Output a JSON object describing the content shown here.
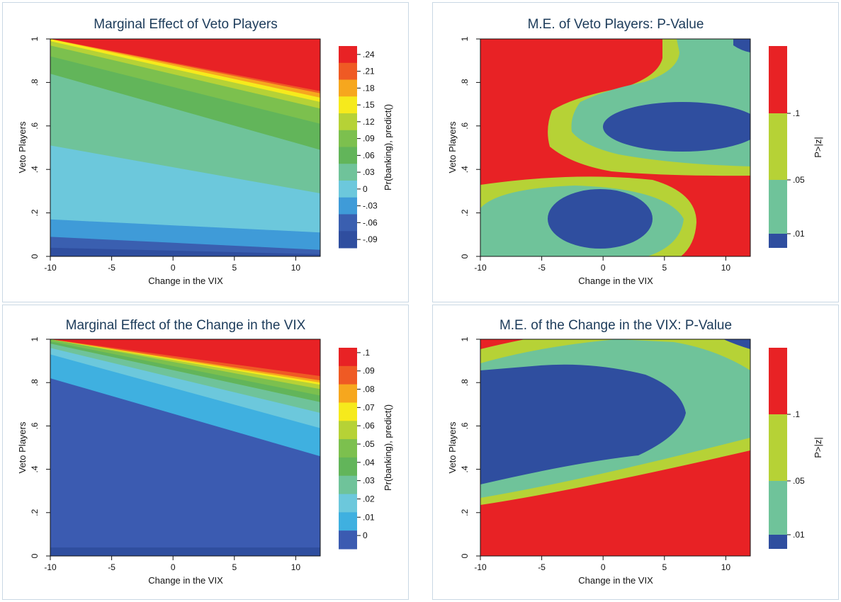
{
  "colors": {
    "c1": "#2f4e9f",
    "c2": "#3a5fb0",
    "c3": "#3f9bd8",
    "c4": "#6cc8dc",
    "c5": "#6fc39a",
    "c6": "#62b55a",
    "c7": "#7cc04e",
    "c8": "#b6d236",
    "c9": "#f6ea1c",
    "c10": "#f6a71e",
    "c11": "#ef5a24",
    "c12": "#e82225",
    "vix_blue": "#3b5bb1",
    "pv_blue": "#2f4e9f",
    "pv_teal": "#6fc39a",
    "pv_lime": "#b6d236",
    "pv_red": "#e82225",
    "panel_border": "#c9d8e4",
    "title": "#1c3b5a"
  },
  "chart_data": [
    {
      "type": "heatmap",
      "title": "Marginal Effect of Veto Players",
      "xlabel": "Change in the VIX",
      "ylabel": "Veto Players",
      "colorbar_label": "Pr(banking), predict()",
      "xlim": [
        -10,
        12
      ],
      "ylim": [
        0,
        1
      ],
      "x_ticks": [
        "-10",
        "-5",
        "0",
        "5",
        "10"
      ],
      "y_ticks": [
        "0",
        ".2",
        ".4",
        ".6",
        ".8",
        "1"
      ],
      "legend_labels": [
        ".24",
        ".21",
        ".18",
        ".15",
        ".12",
        ".09",
        ".06",
        ".03",
        "0",
        "-.03",
        "-.06",
        "-.09"
      ],
      "legend_colors": [
        "#e82225",
        "#ef5a24",
        "#f6a71e",
        "#f6ea1c",
        "#b6d236",
        "#7cc04e",
        "#62b55a",
        "#6fc39a",
        "#6cc8dc",
        "#3f9bd8",
        "#3a5fb0",
        "#2f4e9f"
      ],
      "boundaries": [
        {
          "color": "#2f4e9f",
          "y_at_x_min": 0.0,
          "y_at_x_max": 0.0
        },
        {
          "color": "#3a5fb0",
          "y_at_x_min": 0.04,
          "y_at_x_max": 0.01
        },
        {
          "color": "#3f9bd8",
          "y_at_x_min": 0.09,
          "y_at_x_max": 0.03
        },
        {
          "color": "#6cc8dc",
          "y_at_x_min": 0.17,
          "y_at_x_max": 0.11
        },
        {
          "color": "#6fc39a",
          "y_at_x_min": 0.51,
          "y_at_x_max": 0.29
        },
        {
          "color": "#62b55a",
          "y_at_x_min": 0.84,
          "y_at_x_max": 0.49
        },
        {
          "color": "#7cc04e",
          "y_at_x_min": 0.92,
          "y_at_x_max": 0.61
        },
        {
          "color": "#b6d236",
          "y_at_x_min": 0.97,
          "y_at_x_max": 0.68
        },
        {
          "color": "#f6ea1c",
          "y_at_x_min": 0.99,
          "y_at_x_max": 0.71
        },
        {
          "color": "#f6a71e",
          "y_at_x_min": 1.0,
          "y_at_x_max": 0.73
        },
        {
          "color": "#ef5a24",
          "y_at_x_min": 1.0,
          "y_at_x_max": 0.75
        },
        {
          "color": "#e82225",
          "y_at_x_min": 1.0,
          "y_at_x_max": 0.76
        }
      ]
    },
    {
      "type": "heatmap",
      "title": "M.E. of Veto Players: P-Value",
      "xlabel": "Change in the VIX",
      "ylabel": "Veto Players",
      "colorbar_label": "P>|z|",
      "xlim": [
        -10,
        12
      ],
      "ylim": [
        0,
        1
      ],
      "x_ticks": [
        "-10",
        "-5",
        "0",
        "5",
        "10"
      ],
      "y_ticks": [
        "0",
        ".2",
        ".4",
        ".6",
        ".8",
        "1"
      ],
      "legend_labels": [
        ".1",
        ".05",
        ".01"
      ],
      "legend_colors": [
        "#e82225",
        "#b6d236",
        "#6fc39a",
        "#2f4e9f"
      ]
    },
    {
      "type": "heatmap",
      "title": "Marginal Effect of the Change in the VIX",
      "xlabel": "Change in the VIX",
      "ylabel": "Veto Players",
      "colorbar_label": "Pr(banking), predict()",
      "xlim": [
        -10,
        12
      ],
      "ylim": [
        0,
        1
      ],
      "x_ticks": [
        "-10",
        "-5",
        "0",
        "5",
        "10"
      ],
      "y_ticks": [
        "0",
        ".2",
        ".4",
        ".6",
        ".8",
        "1"
      ],
      "legend_labels": [
        ".1",
        ".09",
        ".08",
        ".07",
        ".06",
        ".05",
        ".04",
        ".03",
        ".02",
        ".01",
        "0"
      ],
      "legend_colors": [
        "#e82225",
        "#ef5a24",
        "#f6a71e",
        "#f6ea1c",
        "#b6d236",
        "#7cc04e",
        "#62b55a",
        "#6fc39a",
        "#6cc8dc",
        "#3fb0e0",
        "#3b5bb1"
      ],
      "boundaries": [
        {
          "color": "#3b5bb1",
          "y_at_x_min": 0.0,
          "y_at_x_max": 0.0
        },
        {
          "color": "#3fb0e0",
          "y_at_x_min": 0.82,
          "y_at_x_max": 0.46
        },
        {
          "color": "#6cc8dc",
          "y_at_x_min": 0.93,
          "y_at_x_max": 0.59
        },
        {
          "color": "#6fc39a",
          "y_at_x_min": 0.96,
          "y_at_x_max": 0.66
        },
        {
          "color": "#62b55a",
          "y_at_x_min": 0.98,
          "y_at_x_max": 0.71
        },
        {
          "color": "#7cc04e",
          "y_at_x_min": 0.99,
          "y_at_x_max": 0.74
        },
        {
          "color": "#b6d236",
          "y_at_x_min": 1.0,
          "y_at_x_max": 0.77
        },
        {
          "color": "#f6ea1c",
          "y_at_x_min": 1.0,
          "y_at_x_max": 0.79
        },
        {
          "color": "#f6a71e",
          "y_at_x_min": 1.0,
          "y_at_x_max": 0.8
        },
        {
          "color": "#ef5a24",
          "y_at_x_min": 1.0,
          "y_at_x_max": 0.81
        },
        {
          "color": "#e82225",
          "y_at_x_min": 1.0,
          "y_at_x_max": 0.83
        }
      ]
    },
    {
      "type": "heatmap",
      "title": "M.E. of the Change in the VIX: P-Value",
      "xlabel": "Change in the VIX",
      "ylabel": "Veto Players",
      "colorbar_label": "P>|z|",
      "xlim": [
        -10,
        12
      ],
      "ylim": [
        0,
        1
      ],
      "x_ticks": [
        "-10",
        "-5",
        "0",
        "5",
        "10"
      ],
      "y_ticks": [
        "0",
        ".2",
        ".4",
        ".6",
        ".8",
        "1"
      ],
      "legend_labels": [
        ".1",
        ".05",
        ".01"
      ],
      "legend_colors": [
        "#e82225",
        "#b6d236",
        "#6fc39a",
        "#2f4e9f"
      ]
    }
  ]
}
